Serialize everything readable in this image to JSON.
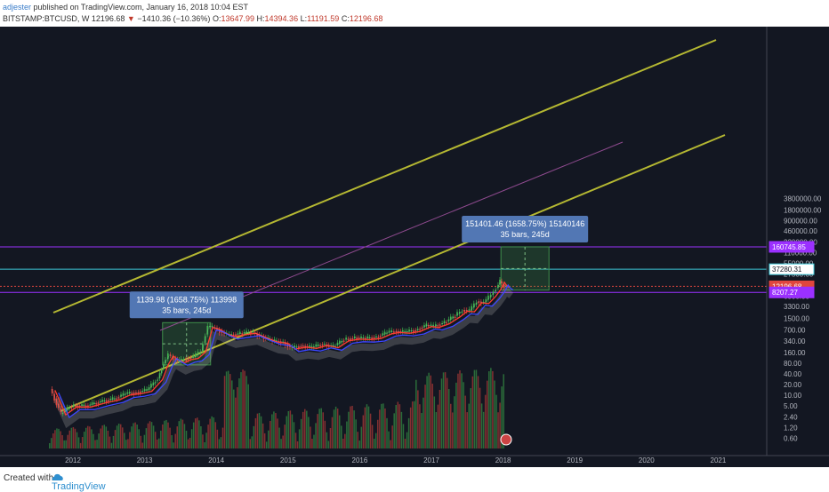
{
  "header": {
    "author": "adjester",
    "published": "published on TradingView.com, January 16, 2018 10:04 EST",
    "symbol": "BITSTAMP:BTCUSD, W",
    "last": "12196.68",
    "arrow": "▼",
    "change": "−1410.36 (−10.36%)",
    "open_label": "O:",
    "open": "13647.99",
    "high_label": "H:",
    "high": "14394.36",
    "low_label": "L:",
    "low": "11191.59",
    "close_label": "C:",
    "close": "12196.68"
  },
  "footer": {
    "created": "Created with",
    "brand": "TradingView",
    "logo_icon": "tradingview-cloud-icon"
  },
  "chart_data": {
    "type": "line",
    "scale": "log",
    "grid": false,
    "colors": {
      "channel": "#b5b832",
      "up": "#3fb34f",
      "down": "#e0463e",
      "ma_red": "#ff3b30",
      "ma_blue": "#3c47ff",
      "purple": "#9b30ff",
      "cyan": "#3cc8d8",
      "measure": "#5277b4"
    },
    "x_ticks": [
      "2012",
      "2013",
      "2014",
      "2015",
      "2016",
      "2017",
      "2018",
      "2019",
      "2020",
      "2021"
    ],
    "y_ticks": [
      "3800000.00",
      "1800000.00",
      "900000.00",
      "460000.00",
      "220000.00",
      "110000.00",
      "55000.00",
      "27500.00",
      "13700.00",
      "6500.00",
      "3300.00",
      "1500.00",
      "700.00",
      "340.00",
      "160.00",
      "80.00",
      "40.00",
      "20.00",
      "10.00",
      "5.00",
      "2.40",
      "1.20",
      "0.60"
    ],
    "price_labels": [
      {
        "text": "160745.85",
        "value": 160745.85,
        "kind": "purple"
      },
      {
        "text": "37280.31",
        "value": 37280.31,
        "kind": "cyan"
      },
      {
        "text": "12196.68",
        "value": 12196.68,
        "kind": "last"
      },
      {
        "text": "8207.27",
        "value": 8207.27,
        "kind": "purple"
      }
    ],
    "series": [
      {
        "x": [
          2011.7,
          2011.85,
          2012.0,
          2012.2,
          2012.4,
          2012.6,
          2012.75,
          2012.9,
          2013.05,
          2013.2,
          2013.28,
          2013.35,
          2013.42,
          2013.5,
          2013.6,
          2013.7,
          2013.8,
          2013.9,
          2014.0,
          2014.1,
          2014.2,
          2014.35,
          2014.5,
          2014.65,
          2014.8,
          2014.95,
          2015.05,
          2015.2,
          2015.35,
          2015.5,
          2015.65,
          2015.8,
          2015.95,
          2016.1,
          2016.25,
          2016.4,
          2016.5,
          2016.65,
          2016.8,
          2016.95,
          2017.05,
          2017.2,
          2017.35,
          2017.45,
          2017.55,
          2017.65,
          2017.75,
          2017.85,
          2017.92,
          2017.97,
          2018.0,
          2018.04
        ],
        "values": [
          15,
          3,
          5,
          5,
          6.5,
          8,
          11,
          12,
          14,
          30,
          80,
          140,
          110,
          90,
          110,
          120,
          180,
          900,
          800,
          600,
          500,
          560,
          620,
          460,
          350,
          320,
          220,
          250,
          230,
          280,
          240,
          380,
          420,
          410,
          440,
          600,
          650,
          620,
          700,
          960,
          900,
          1150,
          1800,
          2600,
          2500,
          4500,
          4300,
          7000,
          11000,
          17000,
          14000,
          12196.68
        ]
      }
    ],
    "annotations": [
      {
        "line1": "1139.98 (1658.75%) 113998",
        "line2": "35 bars, 245d",
        "x0": 2013.25,
        "x1": 2013.92,
        "y0": 72,
        "y1": 1139.98
      },
      {
        "line1": "151401.46 (1658.75%) 15140146",
        "line2": "35 bars, 245d",
        "x0": 2017.97,
        "x1": 2018.64,
        "y0": 9530,
        "y1": 160745.85
      }
    ]
  }
}
